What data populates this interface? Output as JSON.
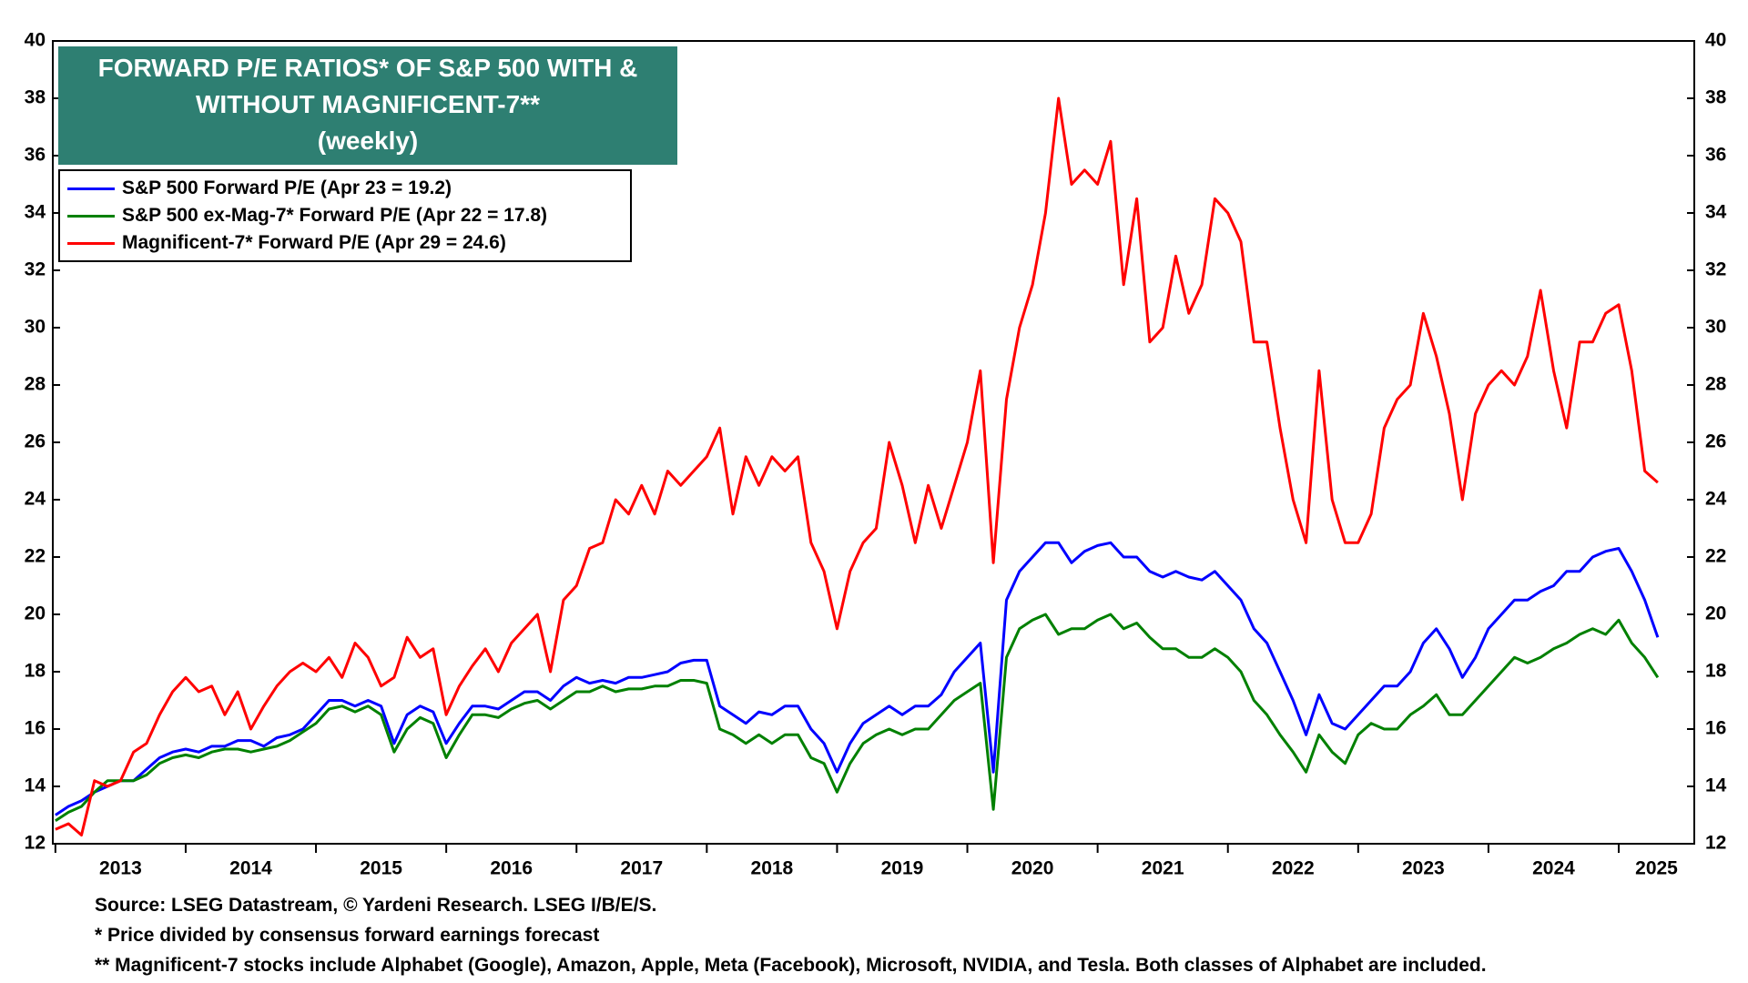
{
  "chart_data": {
    "type": "line",
    "title": "FORWARD P/E RATIOS* OF S&P 500 WITH & WITHOUT MAGNIFICENT-7**",
    "subtitle": "(weekly)",
    "notes": [
      "Source: LSEG Datastream, © Yardeni Research. LSEG I/B/E/S.",
      "* Price divided by consensus forward earnings forecast",
      "** Magnificent-7 stocks include Alphabet (Google), Amazon, Apple, Meta (Facebook), Microsoft, NVIDIA, and Tesla. Both classes of Alphabet are included."
    ],
    "legend": "upper left",
    "grid": false,
    "xlim": [
      2012.98,
      2025.58
    ],
    "xticks": [
      {
        "value": 2013,
        "label": "2013"
      },
      {
        "value": 2014,
        "label": "2014"
      },
      {
        "value": 2015,
        "label": "2015"
      },
      {
        "value": 2016,
        "label": "2016"
      },
      {
        "value": 2017,
        "label": "2017"
      },
      {
        "value": 2018,
        "label": "2018"
      },
      {
        "value": 2019,
        "label": "2019"
      },
      {
        "value": 2020,
        "label": "2020"
      },
      {
        "value": 2021,
        "label": "2021"
      },
      {
        "value": 2022,
        "label": "2022"
      },
      {
        "value": 2023,
        "label": "2023"
      },
      {
        "value": 2024,
        "label": "2024"
      },
      {
        "value": 2025,
        "label": "2025"
      }
    ],
    "ylim": [
      12,
      40
    ],
    "yticks": [
      12,
      14,
      16,
      18,
      20,
      22,
      24,
      26,
      28,
      30,
      32,
      34,
      36,
      38,
      40
    ],
    "x": [
      2013,
      2013.1,
      2013.2,
      2013.3,
      2013.4,
      2013.5,
      2013.6,
      2013.7,
      2013.8,
      2013.9,
      2014,
      2014.1,
      2014.2,
      2014.3,
      2014.4,
      2014.5,
      2014.6,
      2014.7,
      2014.8,
      2014.9,
      2015,
      2015.1,
      2015.2,
      2015.3,
      2015.4,
      2015.5,
      2015.6,
      2015.7,
      2015.8,
      2015.9,
      2016,
      2016.1,
      2016.2,
      2016.3,
      2016.4,
      2016.5,
      2016.6,
      2016.7,
      2016.8,
      2016.9,
      2017,
      2017.1,
      2017.2,
      2017.3,
      2017.4,
      2017.5,
      2017.6,
      2017.7,
      2017.8,
      2017.9,
      2018,
      2018.1,
      2018.2,
      2018.3,
      2018.4,
      2018.5,
      2018.6,
      2018.7,
      2018.8,
      2018.9,
      2019,
      2019.1,
      2019.2,
      2019.3,
      2019.4,
      2019.5,
      2019.6,
      2019.7,
      2019.8,
      2019.9,
      2020,
      2020.1,
      2020.2,
      2020.3,
      2020.4,
      2020.5,
      2020.6,
      2020.7,
      2020.8,
      2020.9,
      2021,
      2021.1,
      2021.2,
      2021.3,
      2021.4,
      2021.5,
      2021.6,
      2021.7,
      2021.8,
      2021.9,
      2022,
      2022.1,
      2022.2,
      2022.3,
      2022.4,
      2022.5,
      2022.6,
      2022.7,
      2022.8,
      2022.9,
      2023,
      2023.1,
      2023.2,
      2023.3,
      2023.4,
      2023.5,
      2023.6,
      2023.7,
      2023.8,
      2023.9,
      2024,
      2024.1,
      2024.2,
      2024.3,
      2024.4,
      2024.5,
      2024.6,
      2024.7,
      2024.8,
      2024.9,
      2025,
      2025.1,
      2025.2,
      2025.3
    ],
    "series": [
      {
        "name": "S&P 500 Forward P/E (Apr 23 = 19.2)",
        "color": "#0000ff",
        "values": [
          13.0,
          13.3,
          13.5,
          13.8,
          14.0,
          14.2,
          14.2,
          14.6,
          15.0,
          15.2,
          15.3,
          15.2,
          15.4,
          15.4,
          15.6,
          15.6,
          15.4,
          15.7,
          15.8,
          16.0,
          16.5,
          17.0,
          17.0,
          16.8,
          17.0,
          16.8,
          15.5,
          16.5,
          16.8,
          16.6,
          15.5,
          16.2,
          16.8,
          16.8,
          16.7,
          17.0,
          17.3,
          17.3,
          17.0,
          17.5,
          17.8,
          17.6,
          17.7,
          17.6,
          17.8,
          17.8,
          17.9,
          18.0,
          18.3,
          18.4,
          18.4,
          16.8,
          16.5,
          16.2,
          16.6,
          16.5,
          16.8,
          16.8,
          16.0,
          15.5,
          14.5,
          15.5,
          16.2,
          16.5,
          16.8,
          16.5,
          16.8,
          16.8,
          17.2,
          18.0,
          18.5,
          19.0,
          14.5,
          20.5,
          21.5,
          22.0,
          22.5,
          22.5,
          21.8,
          22.2,
          22.4,
          22.5,
          22.0,
          22.0,
          21.5,
          21.3,
          21.5,
          21.3,
          21.2,
          21.5,
          21.0,
          20.5,
          19.5,
          19.0,
          18.0,
          17.0,
          15.8,
          17.2,
          16.2,
          16.0,
          16.5,
          17.0,
          17.5,
          17.5,
          18.0,
          19.0,
          19.5,
          18.8,
          17.8,
          18.5,
          19.5,
          20.0,
          20.5,
          20.5,
          20.8,
          21.0,
          21.5,
          21.5,
          22.0,
          22.2,
          22.3,
          21.5,
          20.5,
          19.2
        ]
      },
      {
        "name": "S&P 500 ex-Mag-7* Forward P/E (Apr 22 = 17.8)",
        "color": "#008000",
        "values": [
          12.8,
          13.1,
          13.3,
          13.8,
          14.2,
          14.2,
          14.2,
          14.4,
          14.8,
          15.0,
          15.1,
          15.0,
          15.2,
          15.3,
          15.3,
          15.2,
          15.3,
          15.4,
          15.6,
          15.9,
          16.2,
          16.7,
          16.8,
          16.6,
          16.8,
          16.5,
          15.2,
          16.0,
          16.4,
          16.2,
          15.0,
          15.8,
          16.5,
          16.5,
          16.4,
          16.7,
          16.9,
          17.0,
          16.7,
          17.0,
          17.3,
          17.3,
          17.5,
          17.3,
          17.4,
          17.4,
          17.5,
          17.5,
          17.7,
          17.7,
          17.6,
          16.0,
          15.8,
          15.5,
          15.8,
          15.5,
          15.8,
          15.8,
          15.0,
          14.8,
          13.8,
          14.8,
          15.5,
          15.8,
          16.0,
          15.8,
          16.0,
          16.0,
          16.5,
          17.0,
          17.3,
          17.6,
          13.2,
          18.5,
          19.5,
          19.8,
          20.0,
          19.3,
          19.5,
          19.5,
          19.8,
          20.0,
          19.5,
          19.7,
          19.2,
          18.8,
          18.8,
          18.5,
          18.5,
          18.8,
          18.5,
          18.0,
          17.0,
          16.5,
          15.8,
          15.2,
          14.5,
          15.8,
          15.2,
          14.8,
          15.8,
          16.2,
          16.0,
          16.0,
          16.5,
          16.8,
          17.2,
          16.5,
          16.5,
          17.0,
          17.5,
          18.0,
          18.5,
          18.3,
          18.5,
          18.8,
          19.0,
          19.3,
          19.5,
          19.3,
          19.8,
          19.0,
          18.5,
          17.8
        ]
      },
      {
        "name": "Magnificent-7* Forward P/E (Apr 29 = 24.6)",
        "color": "#ff0000",
        "values": [
          12.5,
          12.7,
          12.3,
          14.2,
          14.0,
          14.2,
          15.2,
          15.5,
          16.5,
          17.3,
          17.8,
          17.3,
          17.5,
          16.5,
          17.3,
          16.0,
          16.8,
          17.5,
          18.0,
          18.3,
          18.0,
          18.5,
          17.8,
          19.0,
          18.5,
          17.5,
          17.8,
          19.2,
          18.5,
          18.8,
          16.5,
          17.5,
          18.2,
          18.8,
          18.0,
          19.0,
          19.5,
          20.0,
          18.0,
          20.5,
          21.0,
          22.3,
          22.5,
          24.0,
          23.5,
          24.5,
          23.5,
          25.0,
          24.5,
          25.0,
          25.5,
          26.5,
          23.5,
          25.5,
          24.5,
          25.5,
          25.0,
          25.5,
          22.5,
          21.5,
          19.5,
          21.5,
          22.5,
          23.0,
          26.0,
          24.5,
          22.5,
          24.5,
          23.0,
          24.5,
          26.0,
          28.5,
          21.8,
          27.5,
          30.0,
          31.5,
          34.0,
          38.0,
          35.0,
          35.5,
          35.0,
          36.5,
          31.5,
          34.5,
          29.5,
          30.0,
          32.5,
          30.5,
          31.5,
          34.5,
          34.0,
          33.0,
          29.5,
          29.5,
          26.5,
          24.0,
          22.5,
          28.5,
          24.0,
          22.5,
          22.5,
          23.5,
          26.5,
          27.5,
          28.0,
          30.5,
          29.0,
          27.0,
          24.0,
          27.0,
          28.0,
          28.5,
          28.0,
          29.0,
          31.3,
          28.5,
          26.5,
          29.5,
          29.5,
          30.5,
          30.8,
          28.5,
          25.0,
          24.6
        ]
      }
    ]
  }
}
